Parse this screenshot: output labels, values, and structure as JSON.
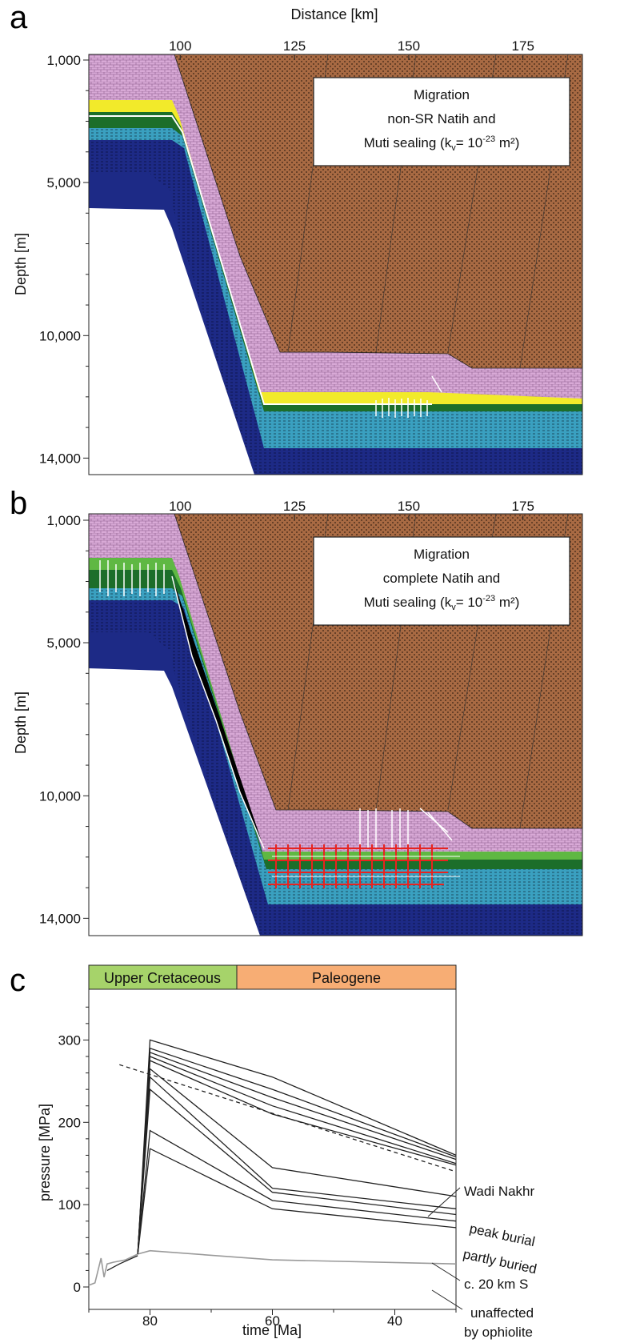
{
  "chart_data": [
    {
      "type": "cross-section",
      "panel": "a",
      "title": "",
      "xlabel": "Distance [km]",
      "ylabel": "Depth [m]",
      "x_ticks": [
        100,
        125,
        150,
        175
      ],
      "y_ticks": [
        "1,000",
        "5,000",
        "10,000",
        "14,000"
      ],
      "xlim": [
        80,
        188
      ],
      "ylim": [
        14200,
        1000
      ],
      "legend_box": [
        "Migration",
        "non-SR Natih and",
        "Muti sealing (k",
        "v",
        "= 10",
        "-23",
        " m²)"
      ],
      "colors": {
        "overburden": "#a86a43",
        "upper": "#d8a9d6",
        "carrier": "#f2ea2a",
        "seal": "#1c6e2a",
        "reservoir": "#3aa0c0",
        "basement": "#1d2a86"
      }
    },
    {
      "type": "cross-section",
      "panel": "b",
      "title": "",
      "xlabel": "",
      "ylabel": "Depth [m]",
      "x_ticks": [
        100,
        125,
        150,
        175
      ],
      "y_ticks": [
        "1,000",
        "5,000",
        "10,000",
        "14,000"
      ],
      "xlim": [
        80,
        188
      ],
      "ylim": [
        14200,
        1000
      ],
      "legend_box": [
        "Migration",
        "complete Natih and",
        "Muti sealing (k",
        "v",
        "= 10",
        "-23",
        " m²)"
      ],
      "colors": {
        "overburden": "#a86a43",
        "upper": "#d8a9d6",
        "carrier": "#5fb843",
        "seal": "#1c6e2a",
        "reservoir": "#3aa0c0",
        "basement": "#1d2a86",
        "vectors_red": "#e8231f"
      }
    },
    {
      "type": "line",
      "panel": "c",
      "title": "",
      "xlabel": "time [Ma]",
      "ylabel": "pressure [MPa]",
      "xlim": [
        90,
        30
      ],
      "ylim": [
        0,
        350
      ],
      "x_ticks": [
        80,
        60,
        40
      ],
      "y_ticks": [
        0,
        100,
        200,
        300
      ],
      "periods": [
        {
          "label": "Upper Cretaceous",
          "from": 90,
          "to": 66,
          "color": "#a6d36a"
        },
        {
          "label": "Paleogene",
          "from": 66,
          "to": 30,
          "color": "#f7ad74"
        }
      ],
      "series": [
        {
          "group": "Wadi Nakhr",
          "x": [
            82,
            80,
            60,
            30
          ],
          "y": [
            40,
            300,
            255,
            160
          ]
        },
        {
          "group": "Wadi Nakhr",
          "x": [
            82,
            80,
            60,
            30
          ],
          "y": [
            40,
            290,
            240,
            158
          ]
        },
        {
          "group": "Wadi Nakhr",
          "x": [
            82,
            80,
            60,
            30
          ],
          "y": [
            40,
            285,
            230,
            155
          ]
        },
        {
          "group": "Wadi Nakhr",
          "x": [
            82,
            80,
            60,
            30
          ],
          "y": [
            40,
            280,
            220,
            150
          ]
        },
        {
          "group": "Wadi Nakhr",
          "x": [
            82,
            80,
            60,
            30
          ],
          "y": [
            40,
            275,
            210,
            148
          ]
        },
        {
          "group": "partly buried",
          "x": [
            82,
            80,
            60,
            30
          ],
          "y": [
            40,
            265,
            145,
            110
          ]
        },
        {
          "group": "partly buried",
          "x": [
            82,
            80,
            60,
            30
          ],
          "y": [
            40,
            255,
            120,
            95
          ]
        },
        {
          "group": "c. 20 km S",
          "x": [
            82,
            80,
            60,
            30
          ],
          "y": [
            40,
            240,
            115,
            88
          ]
        },
        {
          "group": "c. 20 km S",
          "x": [
            82,
            80,
            60,
            30
          ],
          "y": [
            40,
            190,
            105,
            80
          ]
        },
        {
          "group": "c. 20 km S",
          "x": [
            82,
            80,
            60,
            30
          ],
          "y": [
            40,
            168,
            95,
            72
          ]
        }
      ],
      "unaffected": {
        "x": [
          90,
          89,
          88,
          87.5,
          87,
          86,
          84,
          82,
          80,
          60,
          30
        ],
        "y": [
          2,
          5,
          35,
          12,
          28,
          30,
          33,
          40,
          44,
          33,
          28
        ]
      },
      "early": {
        "x": [
          87,
          85,
          82
        ],
        "y": [
          20,
          28,
          38
        ]
      },
      "peak_burial": {
        "x": [
          85,
          30
        ],
        "y": [
          270,
          140
        ]
      },
      "annotations": [
        "Wadi Nakhr",
        "peak burial",
        "partly buried",
        "c. 20 km S",
        "unaffected",
        "by ophiolite"
      ]
    }
  ],
  "panel_labels": [
    "a",
    "b",
    "c"
  ]
}
